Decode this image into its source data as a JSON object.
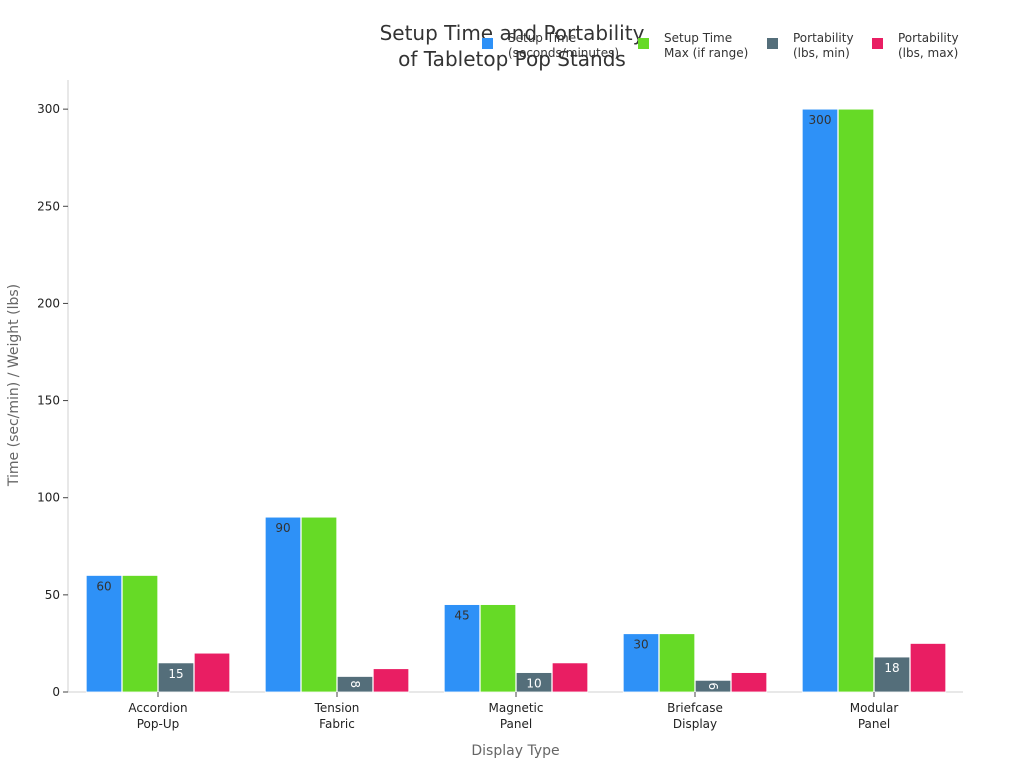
{
  "chart_data": {
    "type": "bar",
    "title": [
      "Setup Time and Portability",
      "of Tabletop Pop Stands"
    ],
    "xlabel": "Display Type",
    "ylabel": "Time (sec/min) / Weight (lbs)",
    "ylim": [
      0,
      315
    ],
    "yticks": [
      0,
      50,
      100,
      150,
      200,
      250,
      300
    ],
    "grid": false,
    "legend_position": "top-right",
    "categories": [
      [
        "Accordion",
        "Pop-Up"
      ],
      [
        "Tension",
        "Fabric"
      ],
      [
        "Magnetic",
        "Panel"
      ],
      [
        "Briefcase",
        "Display"
      ],
      [
        "Modular",
        "Panel"
      ]
    ],
    "series": [
      {
        "name": [
          "Setup Time",
          "(seconds/minutes)"
        ],
        "color": "#2e91f7",
        "values": [
          60,
          90,
          45,
          30,
          300
        ],
        "labels": [
          "60",
          "90",
          "45",
          "30",
          "300"
        ],
        "label_color": "#333333",
        "label_rotated": [
          false,
          false,
          false,
          false,
          false
        ]
      },
      {
        "name": [
          "Setup Time",
          "Max (if range)"
        ],
        "color": "#66da26",
        "values": [
          60,
          90,
          45,
          30,
          300
        ],
        "labels": [],
        "label_color": "#333333",
        "label_rotated": []
      },
      {
        "name": [
          "Portability",
          "(lbs, min)"
        ],
        "color": "#546e7a",
        "values": [
          15,
          8,
          10,
          6,
          18
        ],
        "labels": [
          "15",
          "8",
          "10",
          "6",
          "18"
        ],
        "label_color": "#ffffff",
        "label_rotated": [
          false,
          true,
          false,
          true,
          false
        ]
      },
      {
        "name": [
          "Portability",
          "(lbs, max)"
        ],
        "color": "#e91e63",
        "values": [
          20,
          12,
          15,
          10,
          25
        ],
        "labels": [],
        "label_color": "#ffffff",
        "label_rotated": []
      }
    ]
  }
}
